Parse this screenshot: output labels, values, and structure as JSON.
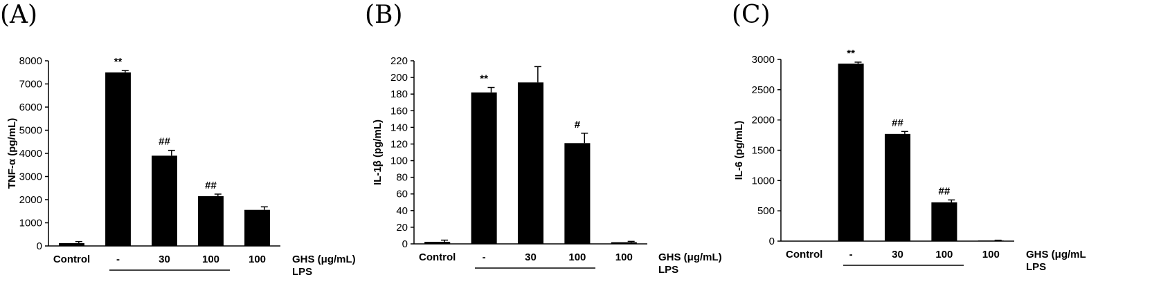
{
  "chart_data": [
    {
      "type": "bar",
      "panel_label": "(A)",
      "ylabel": "TNF-α (pg/mL)",
      "ylim": [
        0,
        8000
      ],
      "yticks": [
        0,
        1000,
        2000,
        3000,
        4000,
        5000,
        6000,
        7000,
        8000
      ],
      "categories": [
        "Control",
        "-",
        "30",
        "100",
        "100"
      ],
      "values": [
        120,
        7500,
        3900,
        2150,
        1560
      ],
      "errors": [
        70,
        80,
        230,
        90,
        130
      ],
      "significance": [
        "",
        "**",
        "##",
        "##",
        ""
      ],
      "treatment_label": "GHS (μg/mL)",
      "group_label": "LPS",
      "bar_color": "#000000"
    },
    {
      "type": "bar",
      "panel_label": "(B)",
      "ylabel": "IL-1β (pg/mL)",
      "ylim": [
        0,
        220
      ],
      "yticks": [
        0,
        20,
        40,
        60,
        80,
        100,
        120,
        140,
        160,
        180,
        200,
        220
      ],
      "categories": [
        "Control",
        "-",
        "30",
        "100",
        "100"
      ],
      "values": [
        2.5,
        182,
        194,
        121,
        2
      ],
      "errors": [
        2,
        6,
        19,
        12,
        1
      ],
      "significance": [
        "",
        "**",
        "",
        "#",
        ""
      ],
      "treatment_label": "GHS (μg/mL)",
      "group_label": "LPS",
      "bar_color": "#000000"
    },
    {
      "type": "bar",
      "panel_label": "(C)",
      "ylabel": "IL-6 (pg/mL)",
      "ylim": [
        0,
        3000
      ],
      "yticks": [
        0,
        500,
        1000,
        1500,
        2000,
        2500,
        3000
      ],
      "categories": [
        "Control",
        "-",
        "30",
        "100",
        "100"
      ],
      "values": [
        0,
        2930,
        1770,
        640,
        10
      ],
      "errors": [
        0,
        25,
        40,
        40,
        5
      ],
      "significance": [
        "",
        "**",
        "##",
        "##",
        ""
      ],
      "treatment_label": "GHS (μg/mL",
      "group_label": "LPS",
      "bar_color": "#000000"
    }
  ]
}
